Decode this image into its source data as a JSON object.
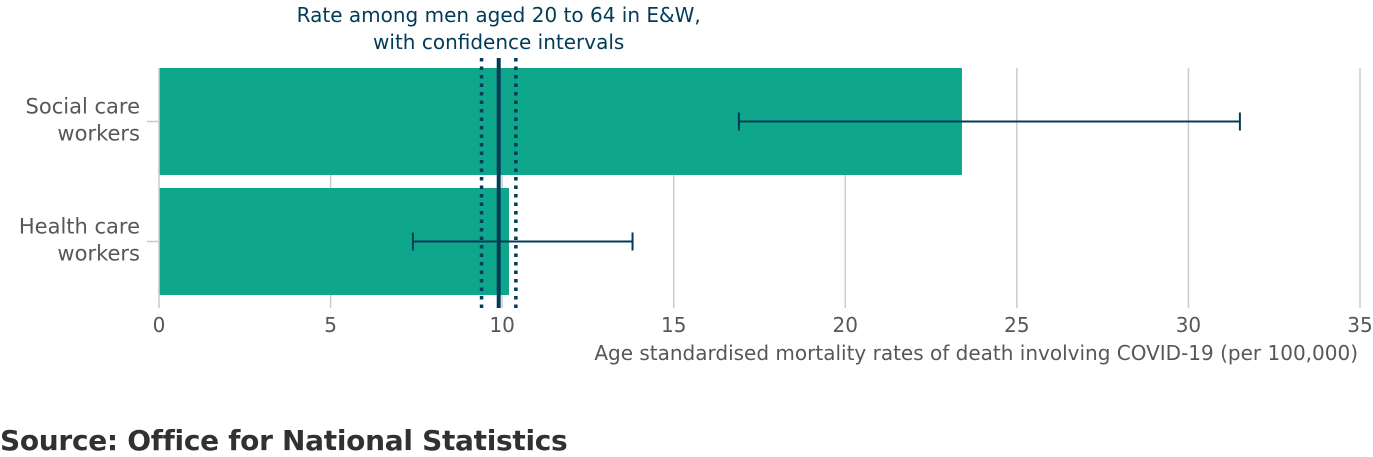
{
  "chart_data": {
    "type": "bar",
    "orientation": "horizontal",
    "categories": [
      [
        "Social care",
        "workers"
      ],
      [
        "Health care",
        "workers"
      ]
    ],
    "values": [
      23.4,
      10.2
    ],
    "error_bars": [
      {
        "lower": 16.9,
        "upper": 31.5
      },
      {
        "lower": 7.4,
        "upper": 13.8
      }
    ],
    "reference_line": {
      "value": 9.9,
      "ci_lower": 9.4,
      "ci_upper": 10.4,
      "label": [
        "Rate among men aged 20 to 64 in E&W,",
        "with confidence intervals"
      ]
    },
    "xlim": [
      0,
      35
    ],
    "xticks": [
      0,
      5,
      10,
      15,
      20,
      25,
      30,
      35
    ],
    "xlabel": "Age standardised mortality rates of death involving COVID-19 (per 100,000)",
    "grid": true,
    "colors": {
      "bar": "#0ea78b",
      "error_bar": "#003c57",
      "reference": "#003c57",
      "grid": "#cccccc",
      "text": "#575757"
    }
  },
  "source": "Source: Office for National Statistics"
}
